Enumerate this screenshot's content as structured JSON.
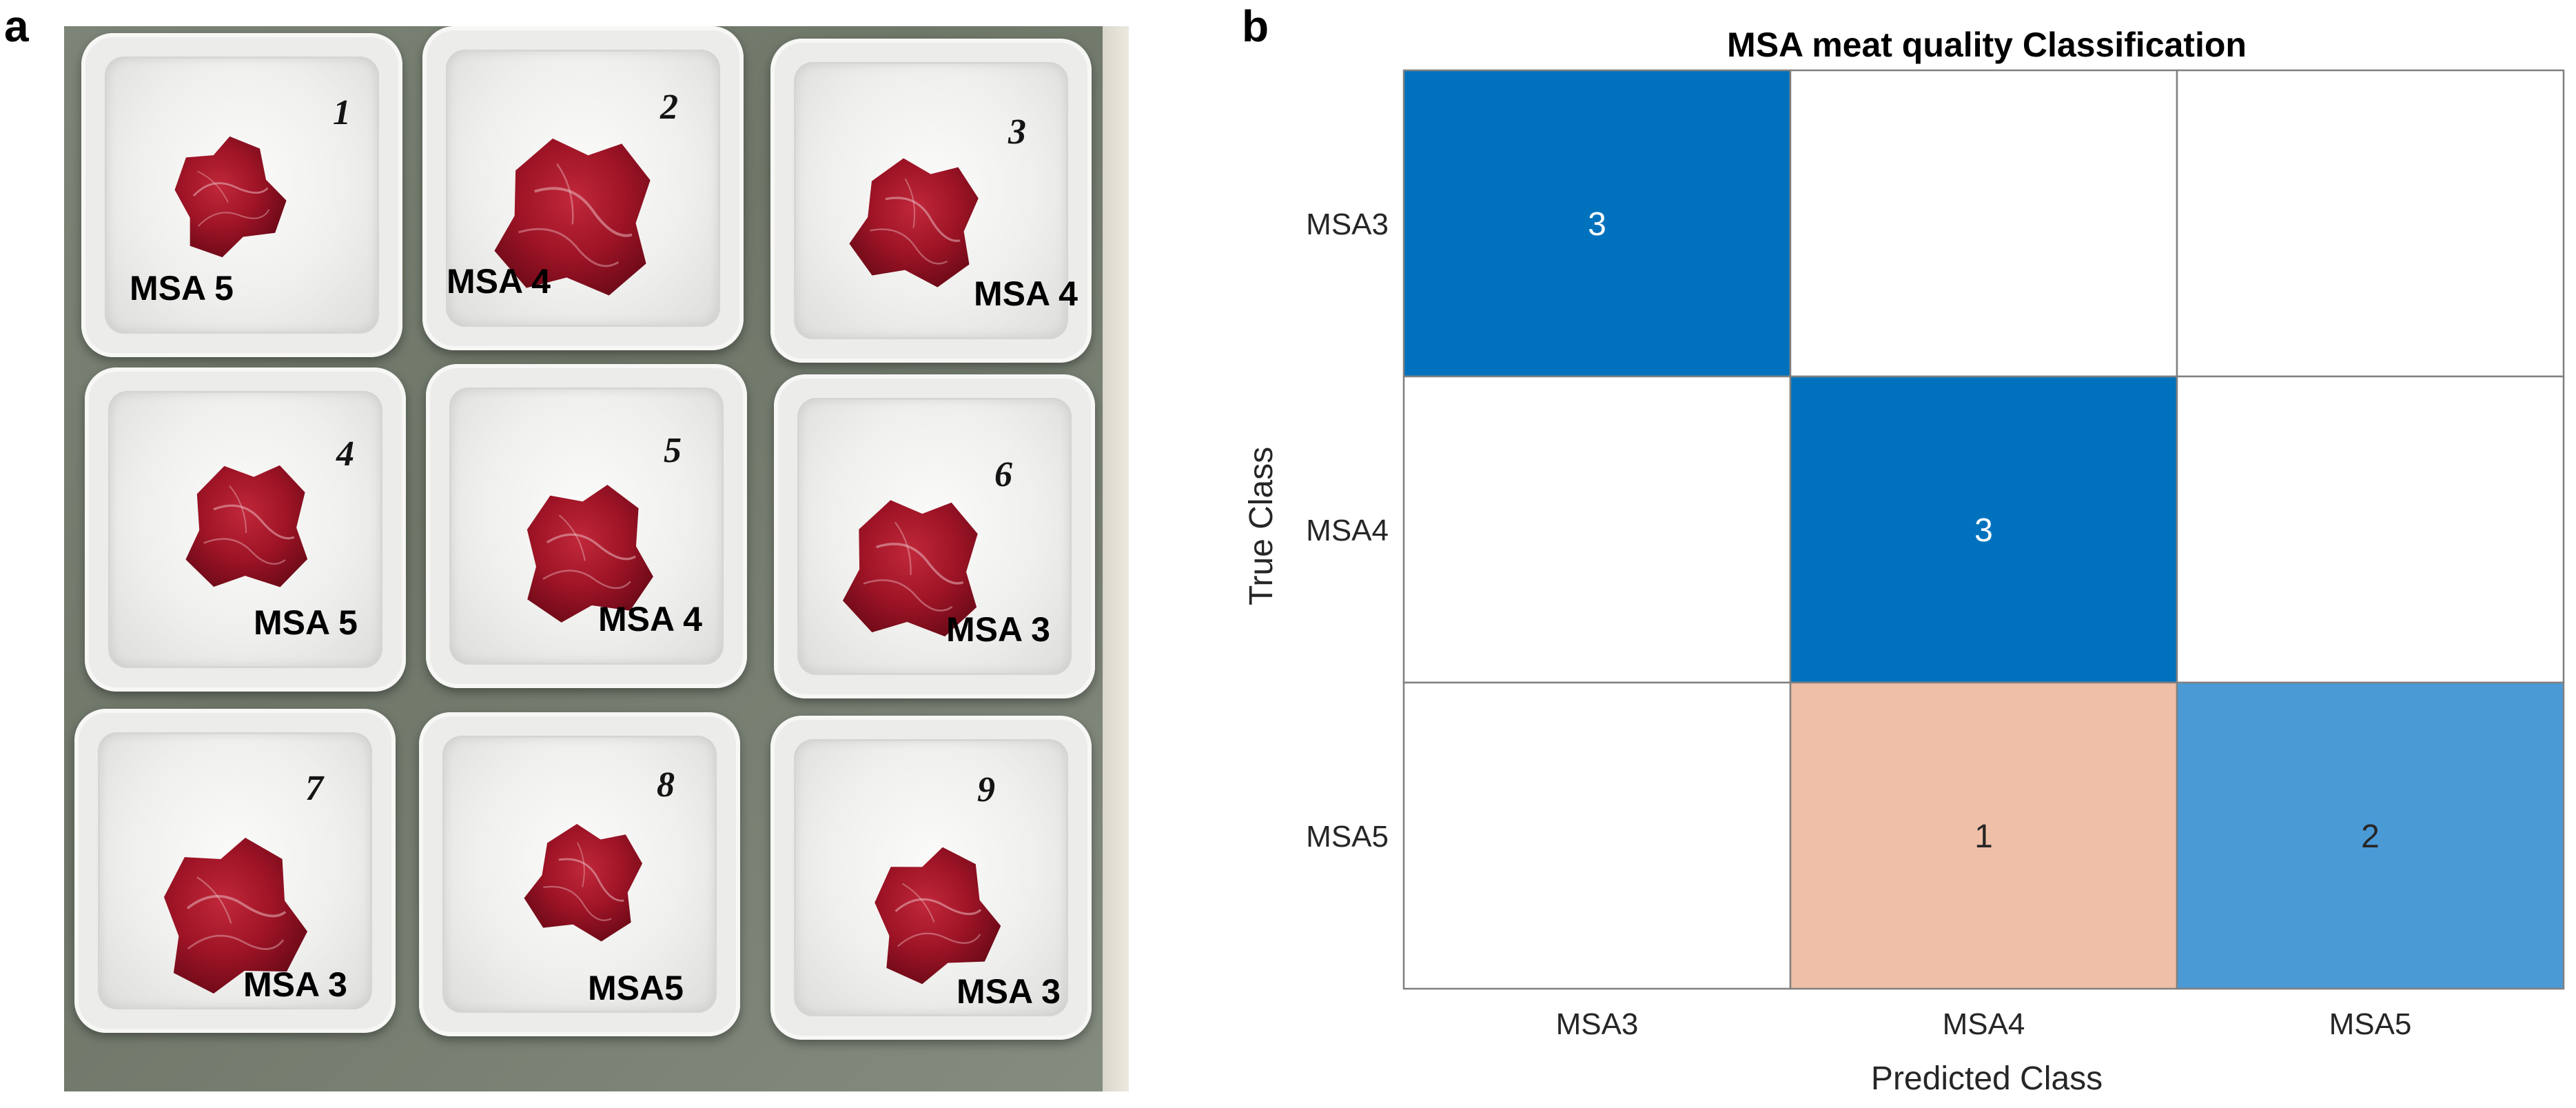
{
  "panels": {
    "a": "a",
    "b": "b"
  },
  "photo": {
    "trays": [
      {
        "number": "1",
        "label": "MSA 5"
      },
      {
        "number": "2",
        "label": "MSA 4"
      },
      {
        "number": "3",
        "label": "MSA 4"
      },
      {
        "number": "4",
        "label": "MSA 5"
      },
      {
        "number": "5",
        "label": "MSA 4"
      },
      {
        "number": "6",
        "label": "MSA 3"
      },
      {
        "number": "7",
        "label": "MSA 3"
      },
      {
        "number": "8",
        "label": "MSA5"
      },
      {
        "number": "9",
        "label": "MSA 3"
      }
    ]
  },
  "chart_data": {
    "type": "heatmap",
    "title": "MSA meat quality Classification",
    "xlabel": "Predicted Class",
    "ylabel": "True Class",
    "x_categories": [
      "MSA3",
      "MSA4",
      "MSA5"
    ],
    "y_categories": [
      "MSA3",
      "MSA4",
      "MSA5"
    ],
    "matrix": [
      [
        3,
        0,
        0
      ],
      [
        0,
        3,
        0
      ],
      [
        0,
        1,
        2
      ]
    ],
    "colors": {
      "correct": "#0072BD",
      "correct_light": "#4A9AD6",
      "incorrect": "#F0BFA8",
      "empty": "#ffffff",
      "grid": "#808080"
    }
  }
}
